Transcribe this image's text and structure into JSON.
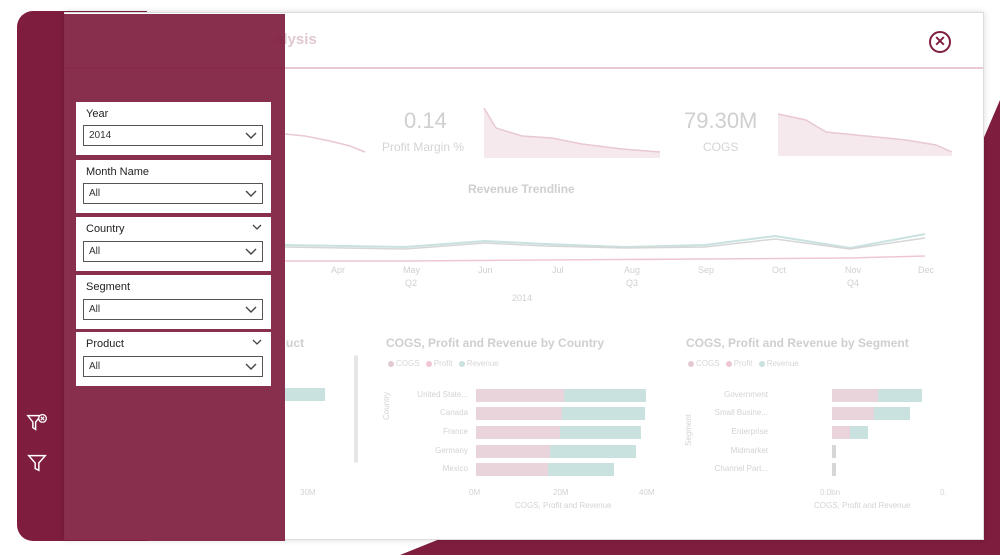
{
  "header": {
    "title": "alysis",
    "close_glyph": "✕"
  },
  "kpis": [
    {
      "value": "0.14",
      "label": "Profit Margin %"
    },
    {
      "value": "79.30M",
      "label": "COGS"
    }
  ],
  "trendline": {
    "title": "Revenue Trendline",
    "months": [
      "Apr",
      "May",
      "Jun",
      "Jul",
      "Aug",
      "Sep",
      "Oct",
      "Nov",
      "Dec"
    ],
    "quarters": [
      "Q2",
      "Q3",
      "Q4"
    ],
    "year": "2014"
  },
  "product_card": {
    "title": "uct",
    "axis_end": "30M"
  },
  "country_card": {
    "title": "COGS, Profit and Revenue by Country",
    "legend": [
      "COGS",
      "Profit",
      "Revenue"
    ],
    "categories": [
      "United State...",
      "Canada",
      "France",
      "Germany",
      "Mexico"
    ],
    "y_axis": "Country",
    "x_ticks": [
      "0M",
      "20M",
      "40M"
    ],
    "x_axis": "COGS, Profit and Revenue"
  },
  "segment_card": {
    "title": "COGS, Profit and Revenue by Segment",
    "legend": [
      "COGS",
      "Profit",
      "Revenue"
    ],
    "categories": [
      "Government",
      "Small Busine...",
      "Enterprise",
      "Midmarket",
      "Channel Part..."
    ],
    "y_axis": "Segment",
    "x_ticks": [
      "0.0bn",
      "0."
    ],
    "x_axis": "COGS, Profit and Revenue"
  },
  "slicers": [
    {
      "label": "Year",
      "value": "2014",
      "has_top_chevron": false
    },
    {
      "label": "Month Name",
      "value": "All",
      "has_top_chevron": false
    },
    {
      "label": "Country",
      "value": "All",
      "has_top_chevron": true
    },
    {
      "label": "Segment",
      "value": "All",
      "has_top_chevron": false
    },
    {
      "label": "Product",
      "value": "All",
      "has_top_chevron": true
    }
  ],
  "colors": {
    "brand": "#7f1d3f",
    "cogs": "#e3c9d1",
    "profit": "#efc6d2",
    "revenue": "#c9e2df"
  },
  "icons": [
    "clear-filter-icon",
    "filter-icon",
    "close-icon",
    "chevron-down-icon"
  ]
}
